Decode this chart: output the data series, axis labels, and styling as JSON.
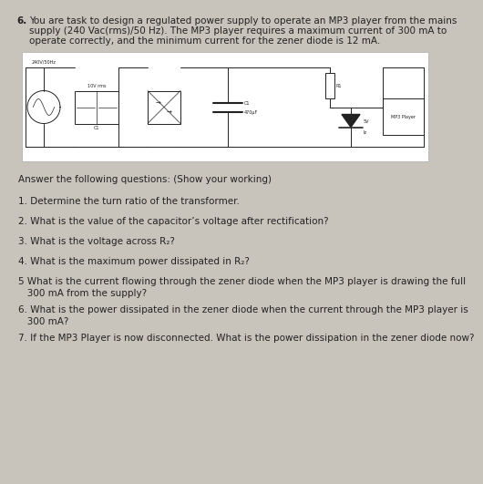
{
  "bg_color": "#c8c4bc",
  "question_number": "6.",
  "intro_line1": "You are task to design a regulated power supply to operate an MP3 player from the mains",
  "intro_line2": "supply (240 Vac(rms)/50 Hz). The MP3 player requires a maximum current of 300 mA to",
  "intro_line3": "operate correctly, and the minimum current for the zener diode is 12 mA.",
  "answer_header": "Answer the following questions: (Show your working)",
  "q1": "1. Determine the turn ratio of the transformer.",
  "q2": "2. What is the value of the capacitor’s voltage after rectification?",
  "q3": "3. What is the voltage across R₂?",
  "q4": "4. What is the maximum power dissipated in R₂?",
  "q5a": "5 What is the current flowing through the zener diode when the MP3 player is drawing the full",
  "q5b": "   300 mA from the supply?",
  "q6a": "6. What is the power dissipated in the zener diode when the current through the MP3 player is",
  "q6b": "   300 mA?",
  "q7": "7. If the MP3 Player is now disconnected. What is the power dissipation in the zener diode now?",
  "circuit_label_source": "240V/50Hz",
  "circuit_label_transform": "10V rms",
  "circuit_label_cap": "470μF",
  "circuit_label_r1": "R1",
  "circuit_label_zener_v": "5V",
  "circuit_label_zener_i": "Iz",
  "circuit_label_load": "MP3 Player",
  "circuit_label_c1": "C1",
  "font_size": 7.5
}
